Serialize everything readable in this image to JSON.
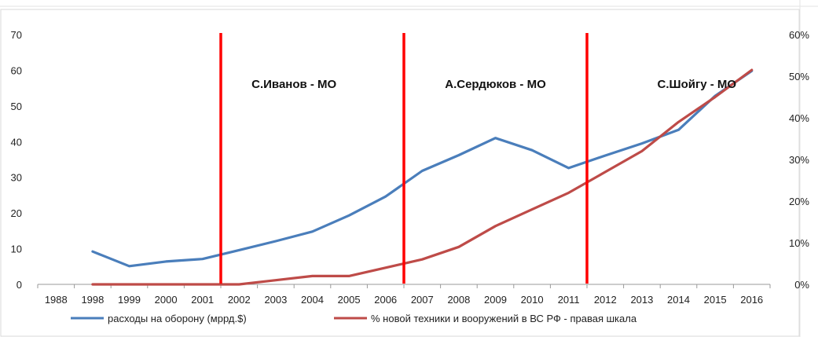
{
  "chart_data": {
    "type": "line",
    "x": [
      "1988",
      "1998",
      "1999",
      "2000",
      "2001",
      "2002",
      "2003",
      "2004",
      "2005",
      "2006",
      "2007",
      "2008",
      "2009",
      "2010",
      "2011",
      "2012",
      "2013",
      "2014",
      "2015",
      "2016"
    ],
    "series": [
      {
        "name": "расходы на оборону (мррд.$)",
        "axis": "left",
        "color": "#4a7ebb",
        "values": [
          null,
          9.2,
          5.1,
          6.4,
          7.1,
          9.6,
          12.1,
          14.8,
          19.3,
          24.6,
          31.8,
          36.2,
          41.0,
          37.6,
          32.6,
          36.1,
          39.5,
          43.3,
          52.8,
          59.8
        ]
      },
      {
        "name": "% новой техники  и вооружений  в ВС РФ - правая шкала",
        "axis": "right",
        "color": "#be4b48",
        "values": [
          null,
          0,
          0,
          0,
          0,
          0,
          1,
          2,
          2,
          4,
          6,
          9,
          14,
          18,
          22,
          27,
          32,
          39,
          45,
          51.5
        ]
      }
    ],
    "ylim": [
      0,
      70
    ],
    "yticks": [
      "0",
      "10",
      "20",
      "30",
      "40",
      "50",
      "60",
      "70"
    ],
    "y2lim": [
      0,
      60
    ],
    "y2ticks": [
      "0%",
      "10%",
      "20%",
      "30%",
      "40%",
      "50%",
      "60%"
    ],
    "grid": false,
    "legend": "bottom",
    "markers": [
      {
        "between": [
          "2001",
          "2002"
        ],
        "color": "#ff0000"
      },
      {
        "between": [
          "2006",
          "2007"
        ],
        "color": "#ff0000"
      },
      {
        "between": [
          "2011",
          "2012"
        ],
        "color": "#ff0000"
      }
    ],
    "annotations": [
      {
        "text": "С.Иванов  - МО",
        "x": "2003.5"
      },
      {
        "text": "А.Сердюков - МО",
        "x": "2009"
      },
      {
        "text": "С.Шойгу  - МО",
        "x": "2014.5"
      }
    ]
  }
}
